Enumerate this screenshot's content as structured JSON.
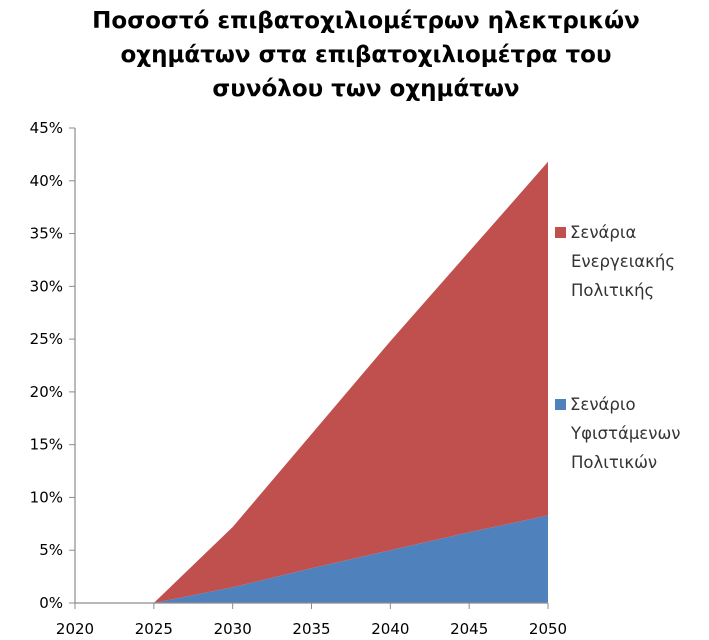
{
  "chart_data": {
    "type": "area",
    "title_lines": [
      "Ποσοστό επιβατοχιλιομέτρων ηλεκτρικών",
      "οχημάτων στα επιβατοχιλιομέτρα του",
      "συνόλου των οχημάτων"
    ],
    "x": [
      2020,
      2025,
      2030,
      2035,
      2040,
      2045,
      2050
    ],
    "x_tick_labels": [
      "2020",
      "2025",
      "2030",
      "2035",
      "2040",
      "2045",
      "2050"
    ],
    "ylim": [
      0,
      45
    ],
    "y_ticks": [
      0,
      5,
      10,
      15,
      20,
      25,
      30,
      35,
      40,
      45
    ],
    "y_tick_labels": [
      "0%",
      "5%",
      "10%",
      "15%",
      "20%",
      "25%",
      "30%",
      "35%",
      "40%",
      "45%"
    ],
    "grid": false,
    "legend_position": "right",
    "series": [
      {
        "name": "Σενάριο Υφιστάμενων Πολιτικών",
        "legend_lines": [
          "Σενάριο",
          "Υφιστάμενων",
          "Πολιτικών"
        ],
        "color": "#4F81BD",
        "values": [
          0,
          0,
          1.5,
          3.3,
          5.0,
          6.7,
          8.3
        ]
      },
      {
        "name": "Σενάρια Ενεργειακής Πολιτικής",
        "legend_lines": [
          "Σενάρια",
          "Ενεργειακής",
          "Πολιτικής"
        ],
        "color": "#C0504D",
        "values": [
          0,
          0,
          7.2,
          16.0,
          24.8,
          33.3,
          41.8
        ]
      }
    ]
  }
}
